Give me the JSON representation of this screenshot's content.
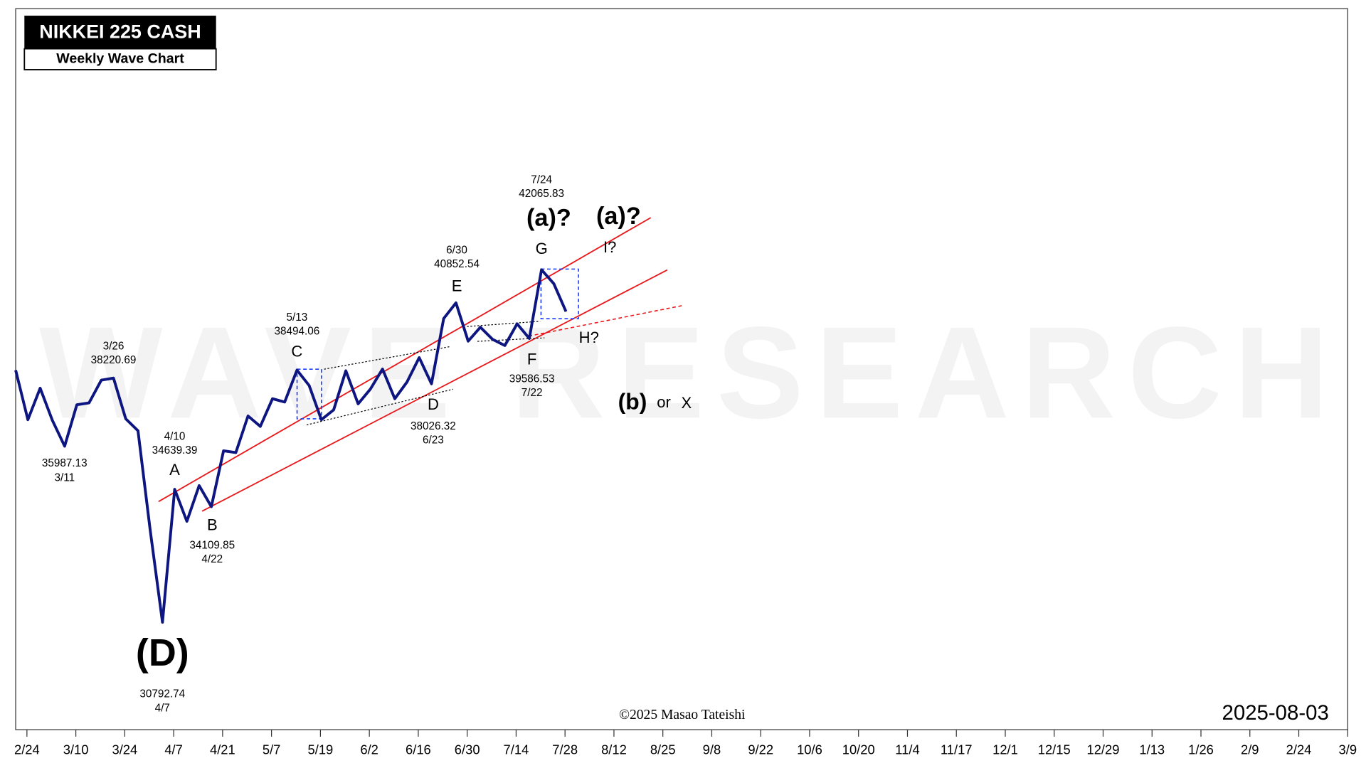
{
  "chart_data": {
    "type": "line",
    "title": "NIKKEI 225 CASH",
    "subtitle": "Weekly Wave Chart",
    "watermark": "WAVE RESEARCH",
    "credit": "©2025 Masao Tateishi",
    "date_stamp": "2025-08-03",
    "color": "#0d1580",
    "log_scale_y": true,
    "ylim": [
      28000,
      53000
    ],
    "xlim": [
      -0.23,
      27
    ],
    "xticks": [
      {
        "value": 0,
        "label": "2/24"
      },
      {
        "value": 1,
        "label": "3/10"
      },
      {
        "value": 2,
        "label": "3/24"
      },
      {
        "value": 3,
        "label": "4/7"
      },
      {
        "value": 4,
        "label": "4/21"
      },
      {
        "value": 5,
        "label": "5/7"
      },
      {
        "value": 6,
        "label": "5/19"
      },
      {
        "value": 7,
        "label": "6/2"
      },
      {
        "value": 8,
        "label": "6/16"
      },
      {
        "value": 9,
        "label": "6/30"
      },
      {
        "value": 10,
        "label": "7/14"
      },
      {
        "value": 11,
        "label": "7/28"
      },
      {
        "value": 12,
        "label": "8/12"
      },
      {
        "value": 13,
        "label": "8/25"
      },
      {
        "value": 14,
        "label": "9/8"
      },
      {
        "value": 15,
        "label": "9/22"
      },
      {
        "value": 16,
        "label": "10/6"
      },
      {
        "value": 17,
        "label": "10/20"
      },
      {
        "value": 18,
        "label": "11/4"
      },
      {
        "value": 19,
        "label": "11/17"
      },
      {
        "value": 20,
        "label": "12/1"
      },
      {
        "value": 21,
        "label": "12/15"
      },
      {
        "value": 22,
        "label": "12/29"
      },
      {
        "value": 23,
        "label": "1/13"
      },
      {
        "value": 24,
        "label": "1/26"
      },
      {
        "value": 25,
        "label": "2/9"
      },
      {
        "value": 26,
        "label": "2/24"
      },
      {
        "value": 27,
        "label": "3/9"
      }
    ],
    "x": [
      -0.23,
      0.02,
      0.27,
      0.52,
      0.77,
      1.02,
      1.27,
      1.52,
      1.77,
      2.02,
      2.27,
      2.52,
      2.77,
      3.02,
      3.27,
      3.52,
      3.77,
      4.02,
      4.27,
      4.52,
      4.77,
      5.02,
      5.27,
      5.52,
      5.77,
      6.02,
      6.27,
      6.52,
      6.77,
      7.02,
      7.27,
      7.52,
      7.77,
      8.02,
      8.27,
      8.52,
      8.77,
      9.02,
      9.27,
      9.52,
      9.77,
      10.02,
      10.27,
      10.52,
      10.77,
      11.02
    ],
    "values": [
      38490,
      36840,
      37880,
      36820,
      35987.13,
      37330,
      37390,
      38150,
      38220.69,
      36870,
      36480,
      33410,
      30792.74,
      34639.39,
      33670,
      34750,
      34109.85,
      35840,
      35780,
      36960,
      36620,
      37530,
      37420,
      38494.06,
      37970,
      36840,
      37160,
      38470,
      37360,
      37850,
      38530,
      37530,
      38090,
      38920,
      38026.32,
      40290,
      40852.54,
      39490,
      39980,
      39550,
      39340,
      40100,
      39586.53,
      42065.83,
      41550,
      40540
    ],
    "dates": [
      null,
      null,
      null,
      null,
      "3/11",
      null,
      null,
      null,
      "3/26",
      null,
      null,
      null,
      "4/7",
      "4/10",
      null,
      null,
      "4/22",
      null,
      null,
      null,
      null,
      null,
      null,
      "5/13",
      null,
      null,
      null,
      null,
      null,
      null,
      null,
      null,
      null,
      null,
      "6/23",
      null,
      "6/30",
      null,
      null,
      null,
      null,
      null,
      "7/22",
      "7/24",
      null,
      null
    ],
    "wave_labels": [
      null,
      null,
      null,
      null,
      null,
      null,
      null,
      null,
      null,
      null,
      null,
      null,
      "(D)",
      "A",
      null,
      null,
      "B",
      null,
      null,
      null,
      null,
      null,
      null,
      "C",
      null,
      null,
      null,
      null,
      null,
      null,
      null,
      null,
      null,
      null,
      "D",
      null,
      "E",
      null,
      null,
      null,
      null,
      null,
      "F",
      "G",
      null,
      null
    ],
    "annotations": [
      "(a)?",
      "(a)?",
      "I?",
      "H?",
      "(b)",
      "or",
      "X"
    ]
  }
}
